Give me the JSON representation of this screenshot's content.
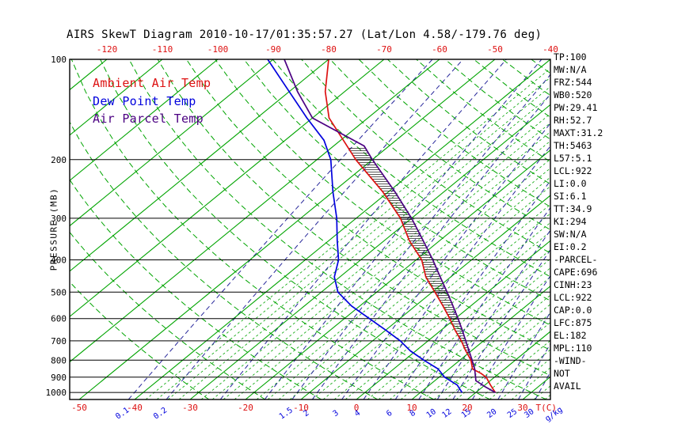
{
  "title": "AIRS SkewT Diagram 2010-10-17/01:35:57.27 (Lat/Lon 4.58/-179.76 deg)",
  "chart_data": {
    "type": "line",
    "title": "AIRS SkewT Diagram 2010-10-17/01:35:57.27 (Lat/Lon 4.58/-179.76 deg)",
    "x_axis": {
      "label": "T(C)",
      "top_tick_temps_c": [
        -120,
        -110,
        -100,
        -90,
        -80,
        -70,
        -60,
        -50,
        -40
      ],
      "bottom_tick_temps_c": [
        -50,
        -40,
        -30,
        -20,
        -10,
        0,
        10,
        20,
        30
      ]
    },
    "y_axis": {
      "label": "PRESSURE (MB)",
      "scale": "log",
      "range_mb": [
        100,
        1050
      ],
      "tick_pressures_mb": [
        100,
        200,
        300,
        400,
        500,
        600,
        700,
        800,
        900,
        1000
      ]
    },
    "mixing_ratio": {
      "unit_label": "g/kg",
      "line_values_g_kg": [
        0.1,
        0.2,
        0.5,
        1,
        1.5,
        2,
        3,
        4,
        6,
        8,
        10,
        12,
        15,
        20,
        25,
        30
      ],
      "label_values_g_kg": [
        0.1,
        0.2,
        1.5,
        2,
        3,
        4,
        6,
        8,
        10,
        12,
        15,
        20,
        25,
        30
      ]
    },
    "isotherms_c": {
      "major_min": -120,
      "major_max": 40,
      "major_step": 10,
      "minor_min": -38,
      "minor_max": 38,
      "minor_step": 2
    },
    "dry_adiabats_c": {
      "min": -30,
      "max": 170,
      "step": 10
    },
    "grid_colors": {
      "isotherm": "#00a400",
      "dry_adiabat": "#00a400",
      "mixing_ratio": "#26269a",
      "pressure_line": "#000000"
    },
    "series": [
      {
        "name": "Ambient Air Temp",
        "color": "#dd1111",
        "points_p_t": [
          [
            1000,
            23.5
          ],
          [
            950,
            21
          ],
          [
            900,
            18.5
          ],
          [
            875,
            16.6
          ],
          [
            850,
            14.2
          ],
          [
            800,
            12
          ],
          [
            750,
            9
          ],
          [
            700,
            6
          ],
          [
            650,
            2.5
          ],
          [
            600,
            -1
          ],
          [
            550,
            -5
          ],
          [
            500,
            -9.5
          ],
          [
            450,
            -14.5
          ],
          [
            400,
            -19
          ],
          [
            350,
            -25.5
          ],
          [
            300,
            -32
          ],
          [
            250,
            -41
          ],
          [
            200,
            -53
          ],
          [
            175,
            -59.5
          ],
          [
            150,
            -67
          ],
          [
            125,
            -73.5
          ],
          [
            100,
            -80
          ]
        ]
      },
      {
        "name": "Dew Point Temp",
        "color": "#0000dd",
        "points_p_t": [
          [
            1000,
            17.5
          ],
          [
            950,
            15
          ],
          [
            900,
            11
          ],
          [
            850,
            8
          ],
          [
            800,
            3.5
          ],
          [
            750,
            -1
          ],
          [
            700,
            -5
          ],
          [
            650,
            -10
          ],
          [
            600,
            -15.5
          ],
          [
            550,
            -21.5
          ],
          [
            500,
            -27
          ],
          [
            450,
            -31
          ],
          [
            400,
            -34
          ],
          [
            350,
            -38.5
          ],
          [
            300,
            -43.5
          ],
          [
            250,
            -50
          ],
          [
            200,
            -57.5
          ],
          [
            175,
            -63
          ],
          [
            150,
            -71
          ],
          [
            125,
            -80
          ],
          [
            100,
            -91
          ]
        ]
      },
      {
        "name": "Air Parcel Temp",
        "color": "#4b0082",
        "points_p_t": [
          [
            1000,
            23.5
          ],
          [
            960,
            20.3
          ],
          [
            922,
            17.4
          ],
          [
            900,
            16.6
          ],
          [
            875,
            15.6
          ],
          [
            850,
            14.6
          ],
          [
            800,
            12.2
          ],
          [
            750,
            9.6
          ],
          [
            700,
            6.8
          ],
          [
            650,
            3.8
          ],
          [
            600,
            0.5
          ],
          [
            550,
            -3.2
          ],
          [
            500,
            -7.3
          ],
          [
            450,
            -11.9
          ],
          [
            400,
            -17
          ],
          [
            350,
            -23
          ],
          [
            300,
            -30
          ],
          [
            250,
            -38.8
          ],
          [
            200,
            -50
          ],
          [
            182,
            -54.5
          ],
          [
            150,
            -70
          ],
          [
            125,
            -78.5
          ],
          [
            100,
            -88
          ]
        ]
      }
    ],
    "cape_hatch": {
      "between": [
        "Air Parcel Temp",
        "Ambient Air Temp"
      ],
      "p_from_mb": 852,
      "p_to_mb": 183
    }
  },
  "side_panel": {
    "lines": [
      "TP:100",
      "MW:N/A",
      "FRZ:544",
      "WB0:520",
      "PW:29.41",
      "RH:52.7",
      "MAXT:31.2",
      "TH:5463",
      "L57:5.1",
      "LCL:922",
      "LI:0.0",
      "SI:6.1",
      "TT:34.9",
      "KI:294",
      "SW:N/A",
      "EI:0.2",
      "-PARCEL-",
      "CAPE:696",
      "CINH:23",
      "LCL:922",
      "CAP:0.0",
      "LFC:875",
      "EL:182",
      "MPL:110",
      "-WIND-",
      "NOT",
      "AVAIL"
    ]
  }
}
